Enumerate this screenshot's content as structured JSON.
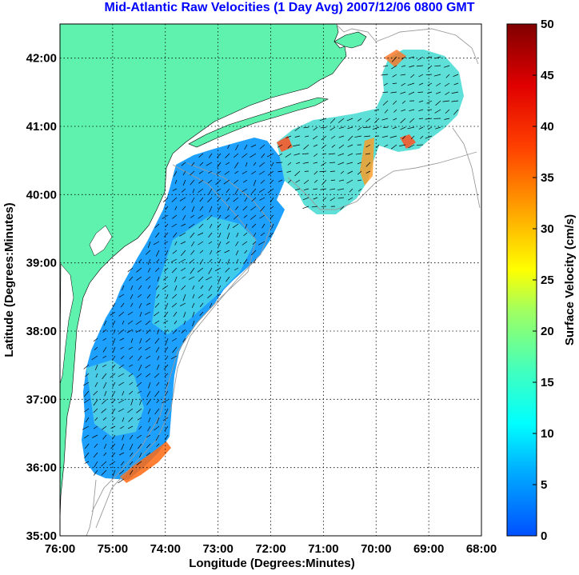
{
  "title": "Mid-Atlantic Raw Velocities (1 Day Avg) 2007/12/06 0800 GMT",
  "map": {
    "xlabel": "Longitude (Degrees:Minutes)",
    "ylabel": "Latitude (Degrees:Minutes)",
    "lon_range": [
      -76,
      -68
    ],
    "lat_range": [
      35,
      42.5
    ],
    "x_ticks": [
      "76:00",
      "75:00",
      "74:00",
      "73:00",
      "72:00",
      "71:00",
      "70:00",
      "69:00",
      "68:00"
    ],
    "y_ticks": [
      "35:00",
      "36:00",
      "37:00",
      "38:00",
      "39:00",
      "40:00",
      "41:00",
      "42:00"
    ],
    "grid": "dotted",
    "land_color": "#5ef2ae",
    "bathymetry_color": "#9a9a9a"
  },
  "colorbar": {
    "label": "Surface Velocity (cm/s)",
    "range": [
      0,
      50
    ],
    "ticks": [
      "0",
      "5",
      "10",
      "15",
      "20",
      "25",
      "30",
      "35",
      "40",
      "45",
      "50"
    ],
    "colormap": [
      "#0050ff",
      "#00a8ff",
      "#00ffff",
      "#40ffbf",
      "#a0ff60",
      "#ffff00",
      "#ffa000",
      "#ff4000",
      "#e00000",
      "#800000"
    ]
  }
}
